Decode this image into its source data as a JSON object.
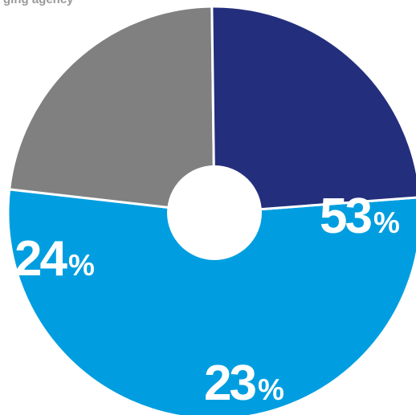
{
  "caption": "ging agency",
  "chart_data": {
    "type": "pie",
    "variant": "donut",
    "title": "",
    "start_angle_deg": -4.3,
    "direction": "clockwise-from-right",
    "slices": [
      {
        "label": "",
        "value": 53,
        "text": "53%",
        "color": "#009ee0"
      },
      {
        "label": "",
        "value": 23,
        "text": "23%",
        "color": "#808080"
      },
      {
        "label": "",
        "value": 24,
        "text": "24%",
        "color": "#232f7c"
      }
    ],
    "legend": "none",
    "slice_border_color": "#ffffff"
  }
}
